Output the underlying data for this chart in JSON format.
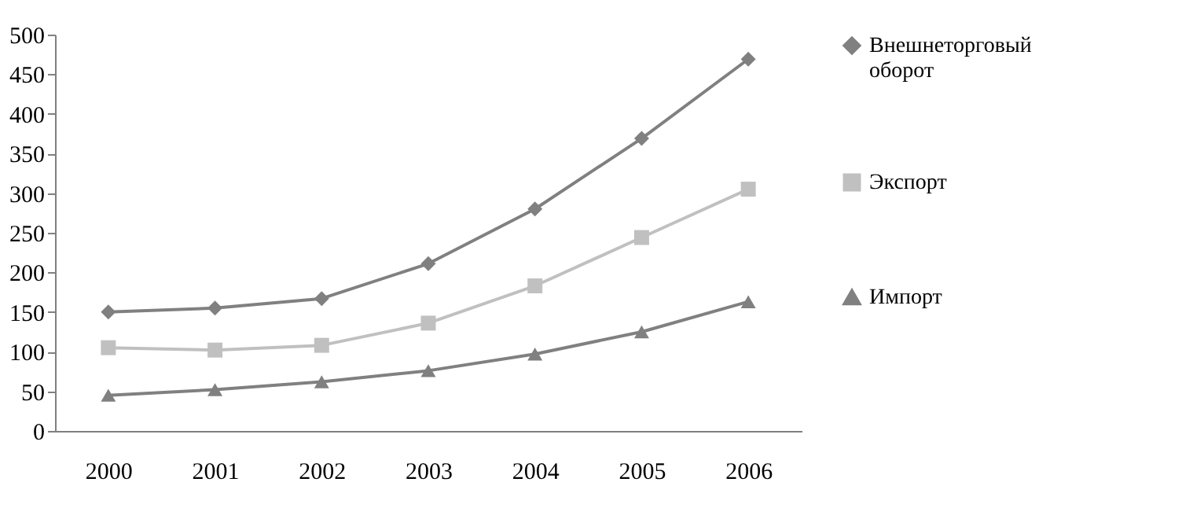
{
  "chart_data": {
    "type": "line",
    "categories": [
      "2000",
      "2001",
      "2002",
      "2003",
      "2004",
      "2005",
      "2006"
    ],
    "series": [
      {
        "name": "Внешнеторговый оборот",
        "color": "#808080",
        "marker": "diamond",
        "values": [
          150,
          155,
          167,
          211,
          280,
          369,
          469
        ]
      },
      {
        "name": "Экспорт",
        "color": "#c0c0c0",
        "marker": "square",
        "values": [
          105,
          102,
          108,
          136,
          183,
          244,
          305
        ]
      },
      {
        "name": "Импорт",
        "color": "#808080",
        "marker": "triangle",
        "values": [
          45,
          52,
          62,
          76,
          97,
          125,
          163
        ]
      }
    ],
    "ylim": [
      0,
      500
    ],
    "yticks": [
      0,
      50,
      100,
      150,
      200,
      250,
      300,
      350,
      400,
      450,
      500
    ],
    "grid": false,
    "legend": "right",
    "line_style": "solid"
  }
}
